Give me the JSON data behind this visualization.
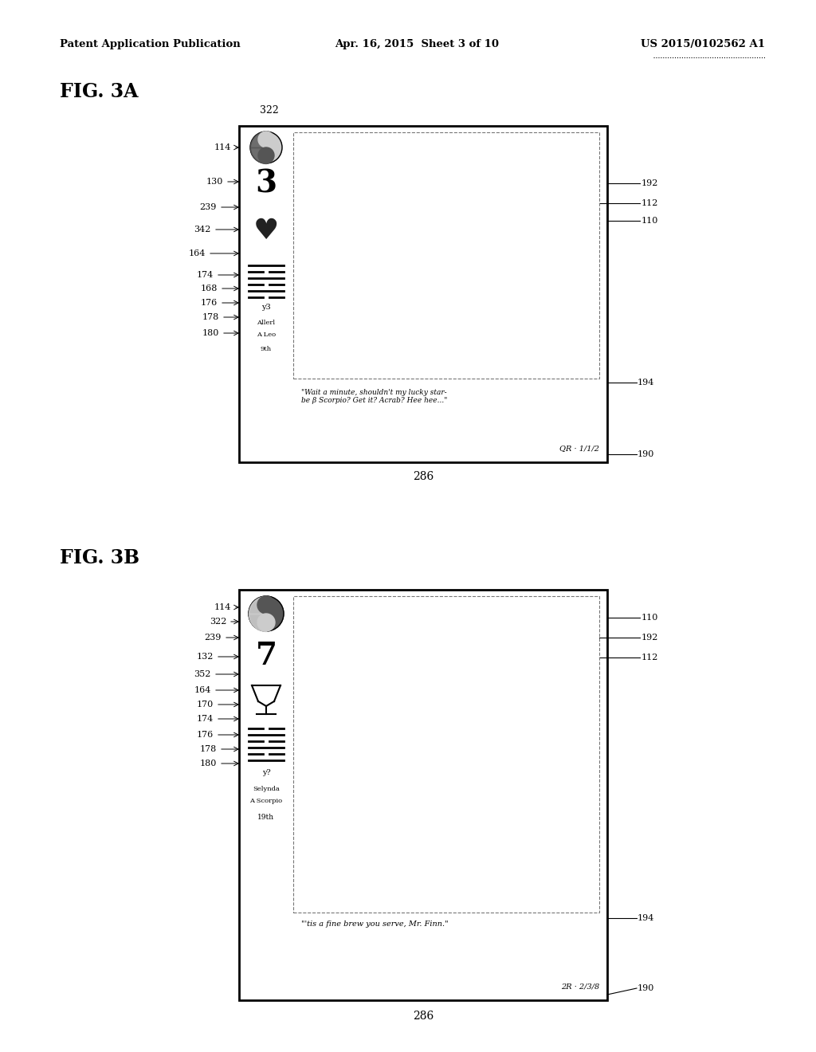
{
  "header_left": "Patent Application Publication",
  "header_middle": "Apr. 16, 2015  Sheet 3 of 10",
  "header_right": "US 2015/0102562 A1",
  "fig_a_label": "FIG. 3A",
  "fig_b_label": "FIG. 3B",
  "bg_color": "#ffffff"
}
